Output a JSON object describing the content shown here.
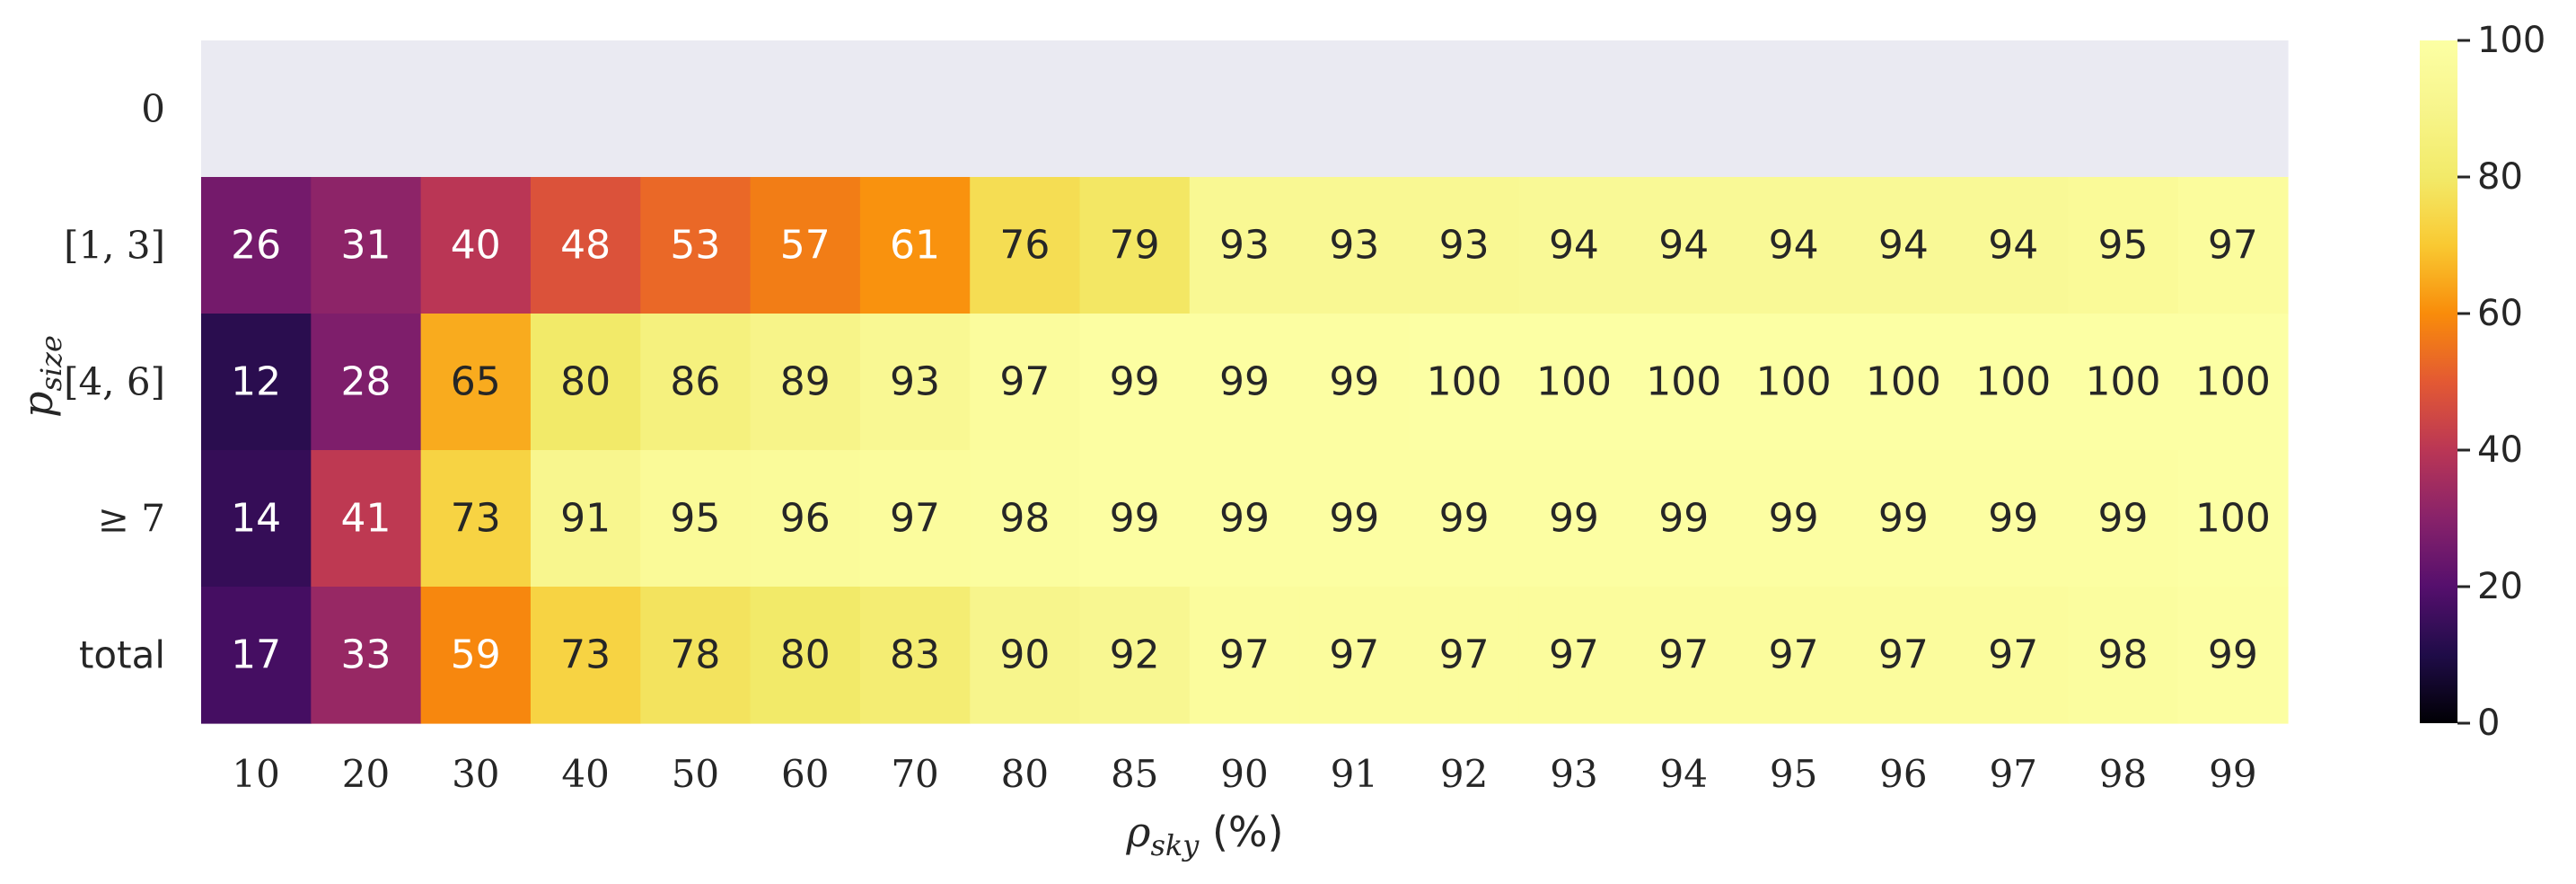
{
  "chart_data": {
    "type": "heatmap",
    "x_categories": [
      "10",
      "20",
      "30",
      "40",
      "50",
      "60",
      "70",
      "80",
      "85",
      "90",
      "91",
      "92",
      "93",
      "94",
      "95",
      "96",
      "97",
      "98",
      "99"
    ],
    "y_categories": [
      "0",
      "[1, 3]",
      "[4, 6]",
      "≥ 7",
      "total"
    ],
    "values": [
      [
        null,
        null,
        null,
        null,
        null,
        null,
        null,
        null,
        null,
        null,
        null,
        null,
        null,
        null,
        null,
        null,
        null,
        null,
        null
      ],
      [
        26,
        31,
        40,
        48,
        53,
        57,
        61,
        76,
        79,
        93,
        93,
        93,
        94,
        94,
        94,
        94,
        94,
        95,
        97
      ],
      [
        12,
        28,
        65,
        80,
        86,
        89,
        93,
        97,
        99,
        99,
        99,
        100,
        100,
        100,
        100,
        100,
        100,
        100,
        100
      ],
      [
        14,
        41,
        73,
        91,
        95,
        96,
        97,
        98,
        99,
        99,
        99,
        99,
        99,
        99,
        99,
        99,
        99,
        99,
        100
      ],
      [
        17,
        33,
        59,
        73,
        78,
        80,
        83,
        90,
        92,
        97,
        97,
        97,
        97,
        97,
        97,
        97,
        97,
        98,
        99
      ]
    ],
    "xlabel": "ρ_sky (%)",
    "xlabel_main": "ρ",
    "xlabel_sub": "sky",
    "xlabel_unit": " (%)",
    "ylabel": "p_size",
    "ylabel_main": "p",
    "ylabel_sub": "size",
    "colormap": "inferno",
    "missing_color": "#eaeaf2",
    "colorbar": {
      "range": [
        0,
        100
      ],
      "ticks": [
        "0",
        "20",
        "40",
        "60",
        "80",
        "100"
      ]
    }
  }
}
